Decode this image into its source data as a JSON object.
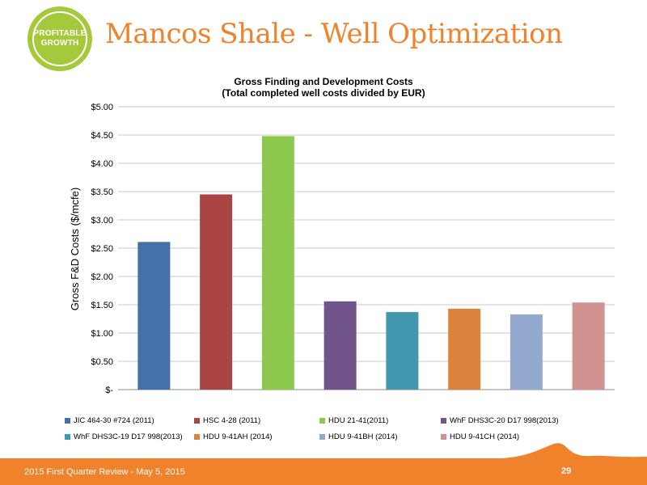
{
  "slide": {
    "badge_text": "PROFITABLE\nGROWTH",
    "title": "Mancos Shale - Well Optimization",
    "footer_text": "2015 First Quarter Review - May 5, 2015",
    "page_number": "29"
  },
  "colors": {
    "title": "#f0822c",
    "badge": "#a6c83b",
    "footer": "#f0822c"
  },
  "chart_data": {
    "type": "bar",
    "title_lines": [
      "Gross Finding and Development Costs",
      "(Total completed well costs divided by EUR)"
    ],
    "xlabel": "",
    "ylabel": "Gross F&D Costs ($/mcfe)",
    "ylim": [
      0,
      5
    ],
    "y_ticks": [
      {
        "value": 0,
        "label": "$-"
      },
      {
        "value": 0.5,
        "label": "$0.50"
      },
      {
        "value": 1.0,
        "label": "$1.00"
      },
      {
        "value": 1.5,
        "label": "$1.50"
      },
      {
        "value": 2.0,
        "label": "$2.00"
      },
      {
        "value": 2.5,
        "label": "$2.50"
      },
      {
        "value": 3.0,
        "label": "$3.00"
      },
      {
        "value": 3.5,
        "label": "$3.50"
      },
      {
        "value": 4.0,
        "label": "$4.00"
      },
      {
        "value": 4.5,
        "label": "$4.50"
      },
      {
        "value": 5.0,
        "label": "$5.00"
      }
    ],
    "grid": true,
    "legend_position": "bottom",
    "series": [
      {
        "name": "JIC 464-30 #724 (2011)",
        "value": 2.61,
        "color": "#4471a7"
      },
      {
        "name": "HSC 4-28 (2011)",
        "value": 3.45,
        "color": "#aa4543"
      },
      {
        "name": "HDU 21-41(2011)",
        "value": 4.48,
        "color": "#8ec94f"
      },
      {
        "name": "WhF DHS3C-20 D17 998(2013)",
        "value": 1.56,
        "color": "#71548c"
      },
      {
        "name": "WhF DHS3C-19 D17 998(2013)",
        "value": 1.37,
        "color": "#4298ae"
      },
      {
        "name": "HDU 9-41AH (2014)",
        "value": 1.43,
        "color": "#da843e"
      },
      {
        "name": "HDU 9-41BH (2014)",
        "value": 1.33,
        "color": "#93a9d0"
      },
      {
        "name": "HDU 9-41CH (2014)",
        "value": 1.54,
        "color": "#d09392"
      }
    ]
  }
}
